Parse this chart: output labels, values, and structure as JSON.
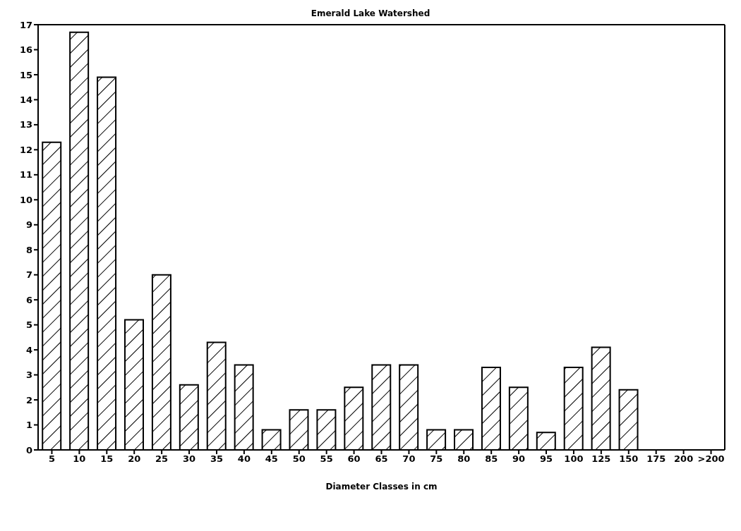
{
  "chart_data": {
    "type": "bar",
    "title": "Emerald Lake Watershed",
    "xlabel": "Diameter Classes in cm",
    "categories": [
      "5",
      "10",
      "15",
      "20",
      "25",
      "30",
      "35",
      "40",
      "45",
      "50",
      "55",
      "60",
      "65",
      "70",
      "75",
      "80",
      "85",
      "90",
      "95",
      "100",
      "125",
      "150",
      "175",
      "200",
      ">200"
    ],
    "values": [
      12.3,
      16.7,
      14.9,
      5.2,
      7.0,
      2.6,
      4.3,
      3.4,
      0.8,
      1.6,
      1.6,
      2.5,
      3.4,
      3.4,
      0.8,
      0.8,
      3.3,
      2.5,
      0.7,
      3.3,
      4.1,
      2.4,
      0,
      0,
      0
    ],
    "color": "#000000",
    "ylim": [
      0,
      17
    ],
    "yticks": [
      0,
      1,
      2,
      3,
      4,
      5,
      6,
      7,
      8,
      9,
      10,
      11,
      12,
      13,
      14,
      15,
      16,
      17
    ],
    "grid": false
  }
}
